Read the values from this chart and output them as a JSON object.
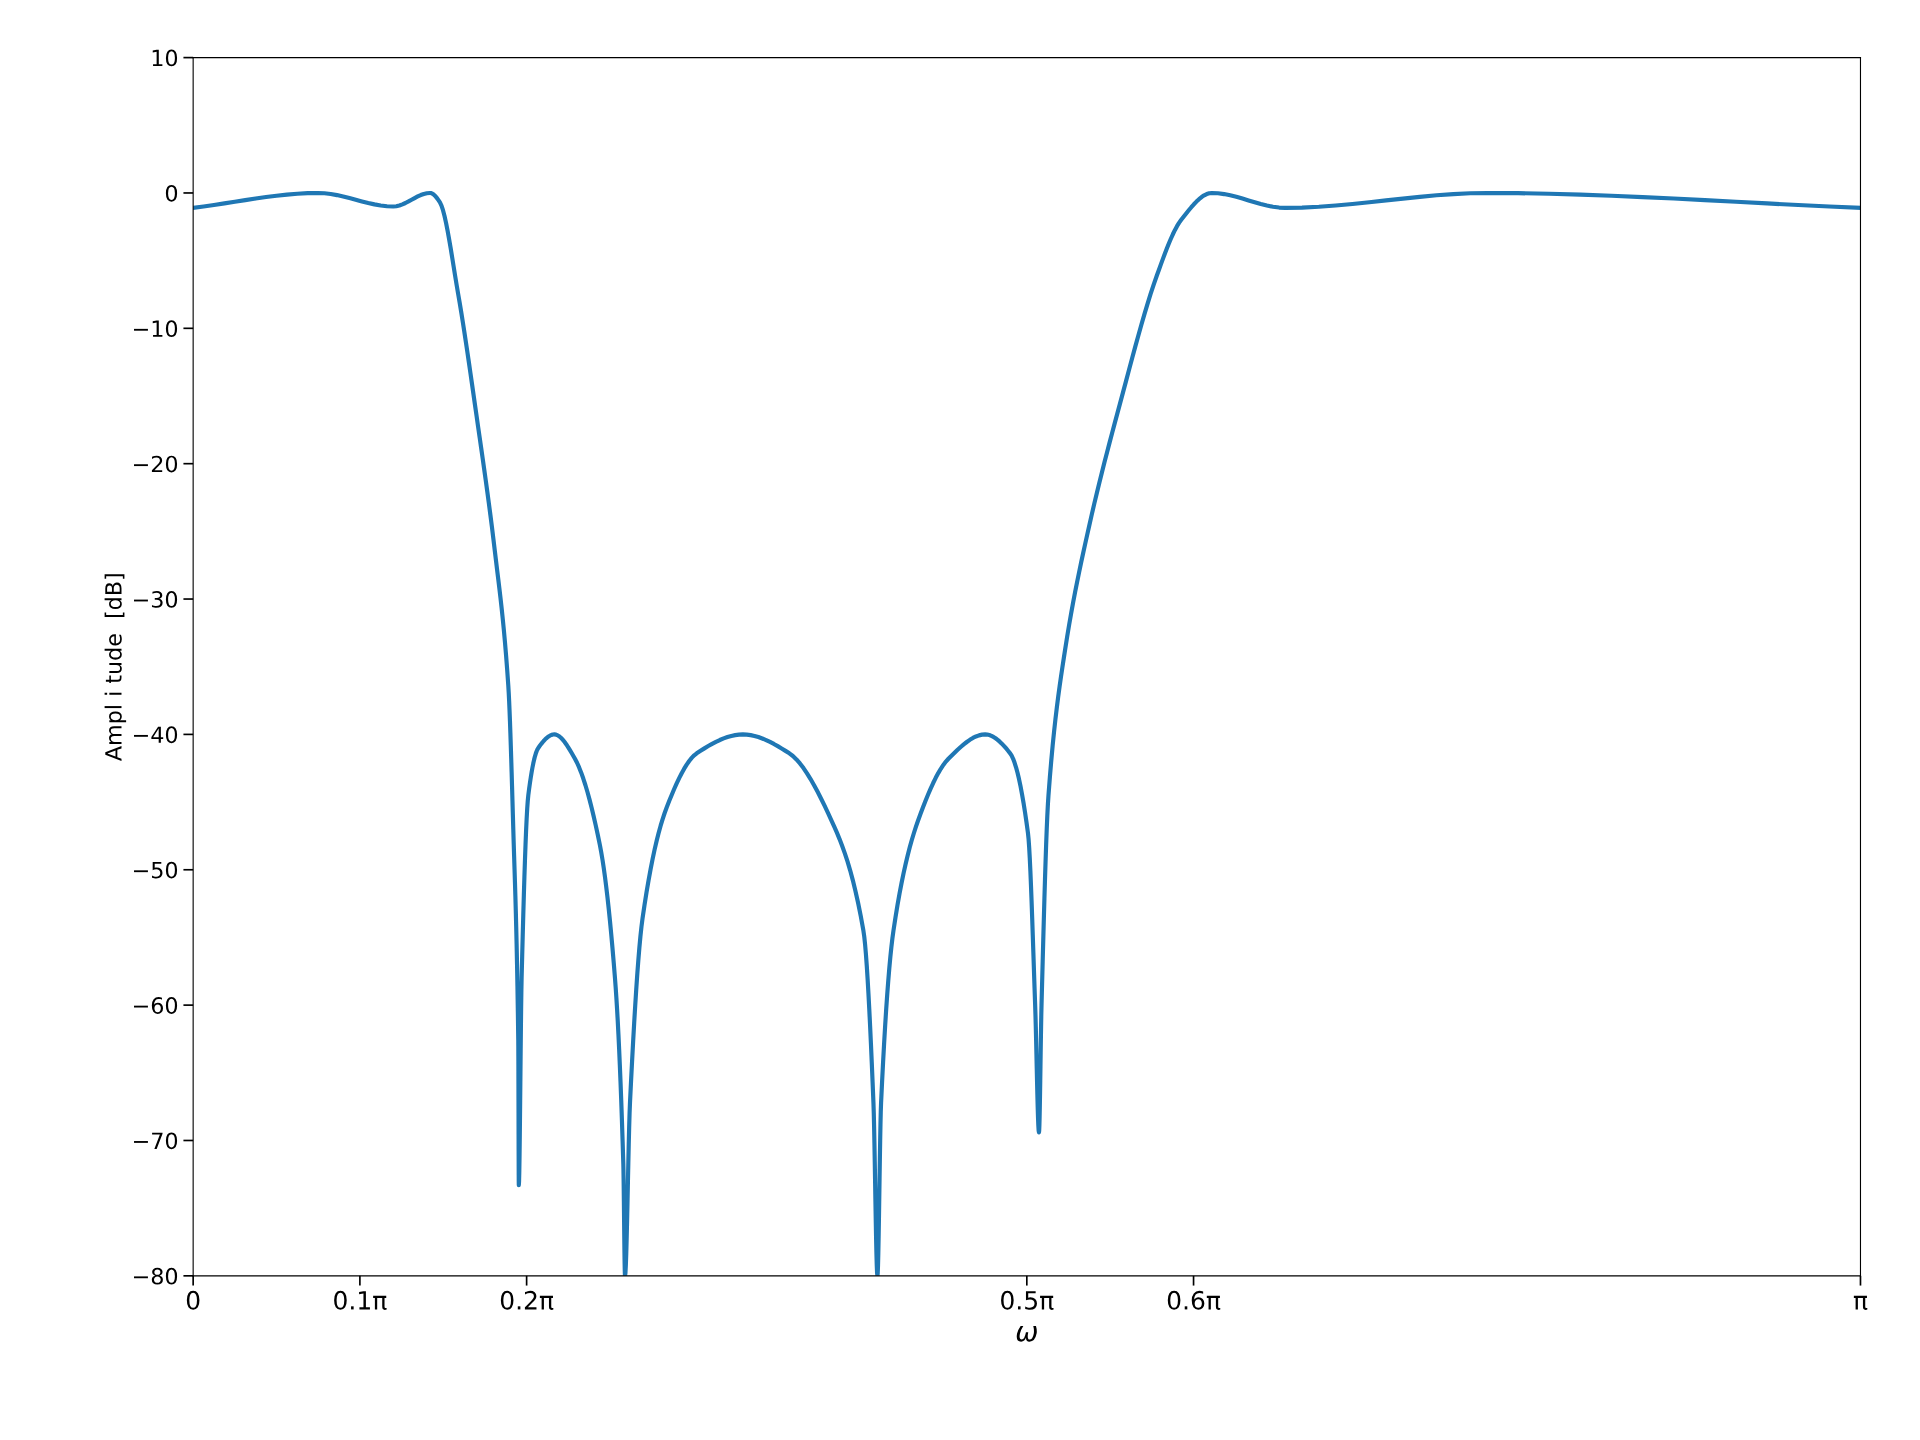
{
  "chart_data": {
    "type": "line",
    "xlabel": "ω",
    "ylabel": "Ampl i tude  [dB]",
    "x": [
      0,
      0.2356,
      0.377,
      0.4461,
      0.465,
      0.4995,
      0.5341,
      0.5686,
      0.5938,
      0.6032,
      0.6126,
      0.6136,
      0.6189,
      0.6315,
      0.6503,
      0.6805,
      0.7194,
      0.7665,
      0.7948,
      0.8105,
      0.8137,
      0.8231,
      0.8467,
      0.8922,
      0.9488,
      1.0358,
      1.1234,
      1.2032,
      1.2629,
      1.2818,
      1.2893,
      1.2962,
      1.3195,
      1.3656,
      1.4231,
      1.4923,
      1.5394,
      1.573,
      1.5865,
      1.5937,
      1.5985,
      1.6116,
      1.6431,
      1.6883,
      1.7461,
      1.8158,
      1.8614,
      1.9195,
      2.0577,
      2.4379,
      3.14159
    ],
    "series": [
      {
        "color": "#1f77b4",
        "values": [
          -1.1,
          0,
          -1,
          0,
          -0.7,
          -7.5,
          -16.5,
          -26.5,
          -36.4,
          -47,
          -62.6,
          -73.3,
          -58,
          -44.5,
          -41,
          -40,
          -41.8,
          -48.2,
          -58,
          -71.7,
          -80,
          -67.2,
          -53.6,
          -45.4,
          -41.4,
          -40,
          -41.4,
          -46.4,
          -54.5,
          -67.2,
          -80,
          -67.2,
          -54.5,
          -46.4,
          -41.8,
          -40,
          -41.4,
          -47.3,
          -60,
          -69.4,
          -60,
          -44.5,
          -33.7,
          -24.6,
          -15.6,
          -6.1,
          -2,
          0,
          -1.1,
          0,
          -1.1
        ]
      }
    ],
    "xlim": [
      0,
      3.14159
    ],
    "xticks": [
      0,
      {
        "value": 0.31416,
        "label": "0.1π"
      },
      {
        "value": 0.62832,
        "label": "0.2π"
      },
      {
        "value": 1.5708,
        "label": "0.5π"
      },
      {
        "value": 1.88496,
        "label": "0.6π"
      },
      {
        "value": 3.14159,
        "label": "π"
      }
    ],
    "ylim": [
      -80,
      10
    ],
    "yticks": [
      -80,
      -70,
      -60,
      -50,
      -40,
      -30,
      -20,
      -10,
      0,
      10
    ],
    "grid": false,
    "legend": false,
    "marker": "none",
    "line_style": "solid"
  }
}
